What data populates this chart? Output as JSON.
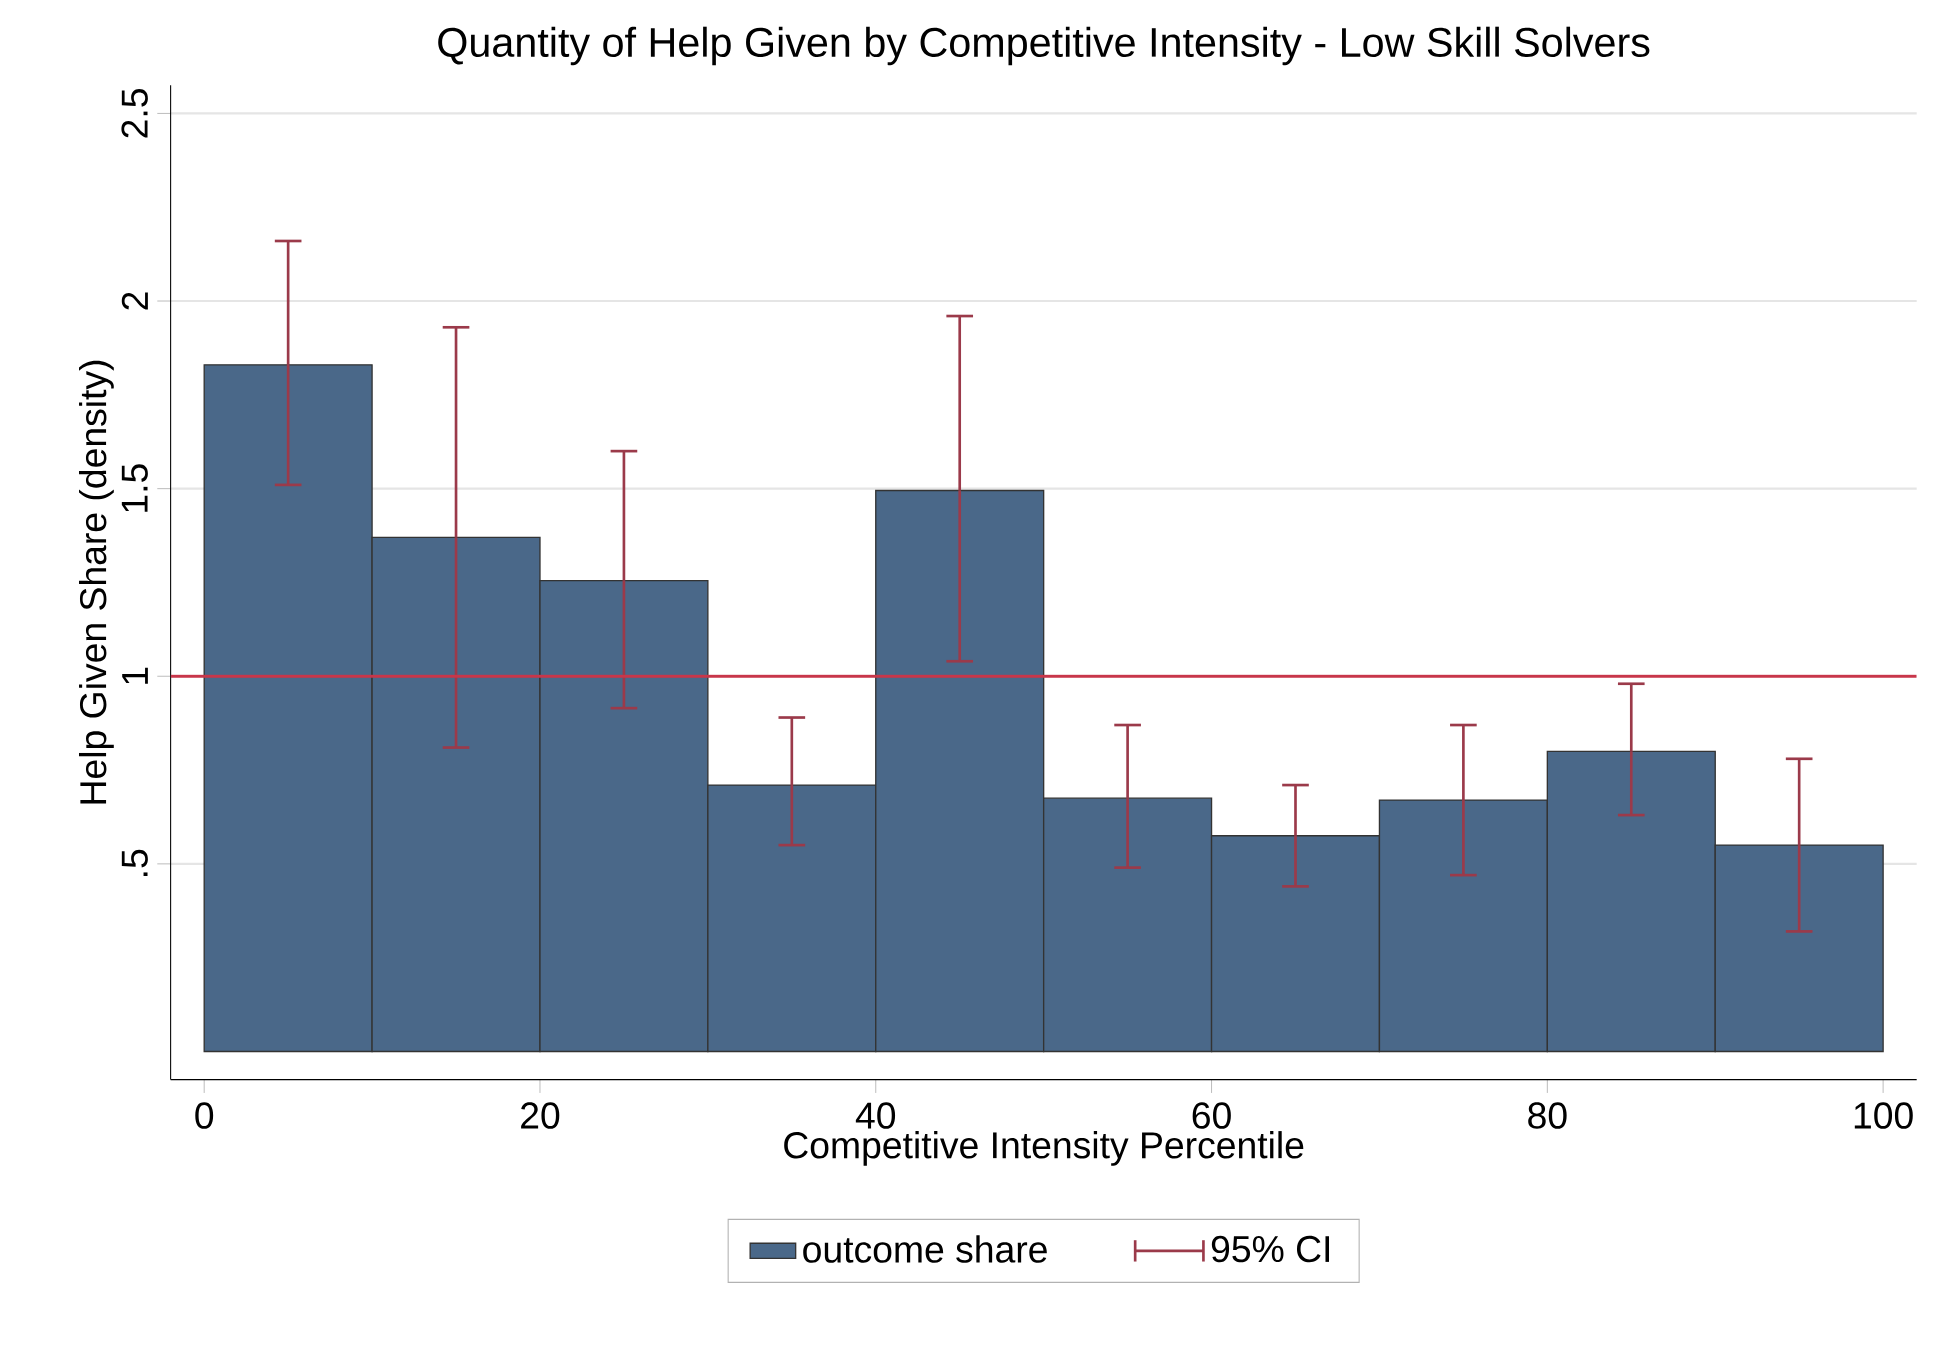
{
  "chart_data": {
    "type": "histogram",
    "title": "Quantity of Help Given by Competitive Intensity - Low Skill Solvers",
    "xlabel": "Competitive Intensity Percentile",
    "ylabel": "Help Given Share (density)",
    "bins": [
      0,
      10,
      20,
      30,
      40,
      50,
      60,
      70,
      80,
      90,
      100
    ],
    "series": [
      {
        "name": "outcome share",
        "color": "#4a6889",
        "values": [
          1.83,
          1.37,
          1.255,
          0.71,
          1.495,
          0.675,
          0.575,
          0.67,
          0.8,
          0.55
        ],
        "errors": [
          [
            1.51,
            2.16
          ],
          [
            0.81,
            1.93
          ],
          [
            0.915,
            1.6
          ],
          [
            0.55,
            0.89
          ],
          [
            1.04,
            1.96
          ],
          [
            0.49,
            0.87
          ],
          [
            0.44,
            0.71
          ],
          [
            0.47,
            0.87
          ],
          [
            0.63,
            0.98
          ],
          [
            0.32,
            0.78
          ]
        ]
      }
    ],
    "annotations": [
      "95% CI"
    ],
    "ref_lines": [
      {
        "axis": "y",
        "value": 1,
        "color": "#c8364a"
      }
    ],
    "xlim": [
      -2,
      102
    ],
    "ylim": [
      -0.075,
      2.575
    ],
    "xticks": [
      0,
      20,
      40,
      60,
      80,
      100
    ],
    "yticks": [
      {
        "value": 0.5,
        "label": ".5"
      },
      1,
      1.5,
      2,
      2.5
    ],
    "grid": "y",
    "legend": "bottom"
  }
}
